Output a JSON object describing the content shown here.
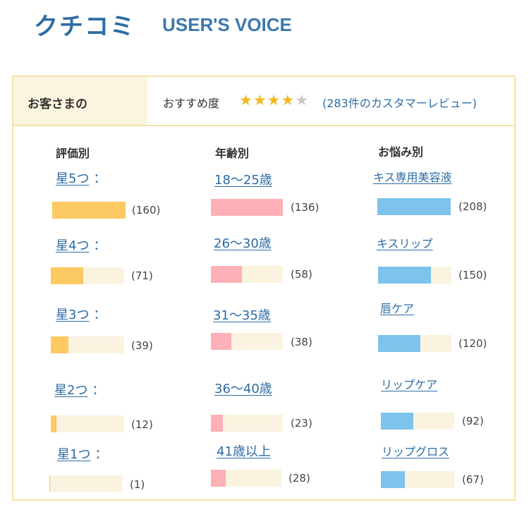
{
  "header": {
    "title_jp": "クチコミ",
    "title_en": "USER'S VOICE"
  },
  "summary": {
    "label": "お客さまの",
    "recommend_label": "おすすめ度",
    "rating": 4,
    "max_rating": 5,
    "review_count_text": "(283件のカスタマーレビュー)"
  },
  "colors": {
    "rating_bar": "#fdc962",
    "age_bar": "#fdb0b5",
    "concern_bar": "#7dc3ec",
    "bar_track": "#faf3e0",
    "link": "#2d6ca4"
  },
  "by_rating": {
    "heading": "評価別",
    "items": [
      {
        "label": "星5つ",
        "suffix": "：",
        "count_text": "(160)",
        "count": 160
      },
      {
        "label": "星4つ",
        "suffix": "：",
        "count_text": "(71)",
        "count": 71
      },
      {
        "label": "星3つ",
        "suffix": "：",
        "count_text": "(39)",
        "count": 39
      },
      {
        "label": "星2つ",
        "suffix": "：",
        "count_text": "(12)",
        "count": 12
      },
      {
        "label": "星1つ",
        "suffix": "：",
        "count_text": "(1)",
        "count": 1
      }
    ]
  },
  "by_age": {
    "heading": "年齢別",
    "items": [
      {
        "label": "18〜25歳",
        "count_text": "(136)",
        "count": 136
      },
      {
        "label": "26〜30歳",
        "count_text": "(58)",
        "count": 58
      },
      {
        "label": "31〜35歳",
        "count_text": "(38)",
        "count": 38
      },
      {
        "label": "36〜40歳",
        "count_text": "(23)",
        "count": 23
      },
      {
        "label": "41歳以上",
        "count_text": "(28)",
        "count": 28
      }
    ]
  },
  "by_concern": {
    "heading": "お悩み別",
    "items": [
      {
        "label": "キス専用美容液",
        "count_text": "(208)",
        "count": 208
      },
      {
        "label": "キスリップ",
        "count_text": "(150)",
        "count": 150
      },
      {
        "label": "唇ケア",
        "count_text": "(120)",
        "count": 120
      },
      {
        "label": "リップケア",
        "count_text": "(92)",
        "count": 92
      },
      {
        "label": "リップグロス",
        "count_text": "(67)",
        "count": 67
      }
    ]
  }
}
